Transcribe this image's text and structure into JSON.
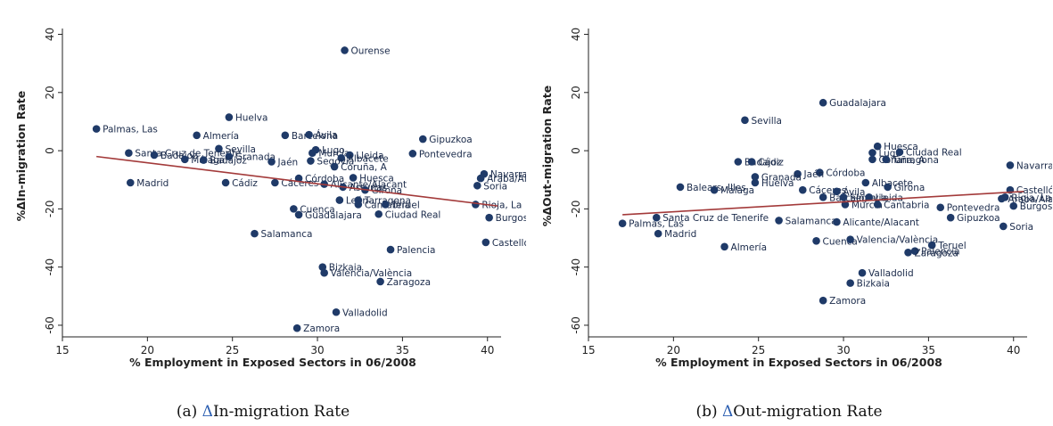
{
  "chart_data": [
    {
      "type": "scatter",
      "panel_caption_prefix": "(a)",
      "panel_caption_delta": "Δ",
      "panel_caption_text": "In-migration Rate",
      "xlabel": "% Employment in Exposed Sectors in 06/2008",
      "ylabel": "%ΔIn-migration Rate",
      "xlim": [
        15,
        40.8
      ],
      "ylim": [
        -64,
        42
      ],
      "xticks": [
        15,
        20,
        25,
        30,
        35,
        40
      ],
      "yticks": [
        40,
        20,
        0,
        -20,
        -40,
        -60
      ],
      "grid": false,
      "colors": {
        "points": "#1f3a68",
        "fit_line": "#a33a3a"
      },
      "fit_line": {
        "x": [
          17,
          40.6
        ],
        "y": [
          -2,
          -19
        ]
      },
      "points": [
        {
          "label": "Ourense",
          "x": 31.6,
          "y": 34.5
        },
        {
          "label": "Huelva",
          "x": 24.8,
          "y": 11.5
        },
        {
          "label": "Palmas, Las",
          "x": 17.0,
          "y": 7.5
        },
        {
          "label": "Almería",
          "x": 22.9,
          "y": 5.3
        },
        {
          "label": "Barcelona",
          "x": 28.1,
          "y": 5.3
        },
        {
          "label": "Ávila",
          "x": 29.5,
          "y": 5.5
        },
        {
          "label": "Gipuzkoa",
          "x": 36.2,
          "y": 4.0
        },
        {
          "label": "Sevilla",
          "x": 24.2,
          "y": 0.7
        },
        {
          "label": "Lugo",
          "x": 29.9,
          "y": 0.3
        },
        {
          "label": "Murcia",
          "x": 29.7,
          "y": -0.8
        },
        {
          "label": "Lleida",
          "x": 31.9,
          "y": -1.5
        },
        {
          "label": "Pontevedra",
          "x": 35.6,
          "y": -1.0
        },
        {
          "label": "Santa Cruz de Tenerife",
          "x": 18.9,
          "y": -0.8
        },
        {
          "label": "Badajoz",
          "x": 20.4,
          "y": -1.5
        },
        {
          "label": "Granada",
          "x": 24.8,
          "y": -2.0
        },
        {
          "label": "Málaga",
          "x": 22.2,
          "y": -3.0
        },
        {
          "label": "Badajoz",
          "x": 23.3,
          "y": -3.2
        },
        {
          "label": "Albacete",
          "x": 31.4,
          "y": -2.5
        },
        {
          "label": "Segovia",
          "x": 29.6,
          "y": -3.5
        },
        {
          "label": "Jaén",
          "x": 27.3,
          "y": -3.8
        },
        {
          "label": "Coruña, A",
          "x": 31.0,
          "y": -5.5
        },
        {
          "label": "Navarra",
          "x": 39.8,
          "y": -8.0
        },
        {
          "label": "Araba/Álava",
          "x": 39.6,
          "y": -9.5
        },
        {
          "label": "Huesca",
          "x": 32.1,
          "y": -9.3
        },
        {
          "label": "Córdoba",
          "x": 28.9,
          "y": -9.5
        },
        {
          "label": "Madrid",
          "x": 19.0,
          "y": -11.0
        },
        {
          "label": "Cádiz",
          "x": 24.6,
          "y": -11.0
        },
        {
          "label": "Cáceres",
          "x": 27.5,
          "y": -11.0
        },
        {
          "label": "Alicante/Alacant",
          "x": 30.4,
          "y": -11.5
        },
        {
          "label": "Asturias",
          "x": 31.5,
          "y": -12.5
        },
        {
          "label": "Girona",
          "x": 32.8,
          "y": -13.5
        },
        {
          "label": "Soria",
          "x": 39.4,
          "y": -12.0
        },
        {
          "label": "León",
          "x": 31.3,
          "y": -17.0
        },
        {
          "label": "Tarragona",
          "x": 32.4,
          "y": -17.0
        },
        {
          "label": "Cantabria",
          "x": 32.4,
          "y": -18.5
        },
        {
          "label": "Teruel",
          "x": 34.0,
          "y": -18.5
        },
        {
          "label": "Rioja, La",
          "x": 39.3,
          "y": -18.5
        },
        {
          "label": "Cuenca",
          "x": 28.6,
          "y": -20.0
        },
        {
          "label": "Guadalajara",
          "x": 28.9,
          "y": -22.0
        },
        {
          "label": "Ciudad Real",
          "x": 33.6,
          "y": -21.8
        },
        {
          "label": "Burgos",
          "x": 40.1,
          "y": -23.0
        },
        {
          "label": "Salamanca",
          "x": 26.3,
          "y": -28.5
        },
        {
          "label": "Castellón/Castelló",
          "x": 39.9,
          "y": -31.5
        },
        {
          "label": "Palencia",
          "x": 34.3,
          "y": -34.0
        },
        {
          "label": "Bizkaia",
          "x": 30.3,
          "y": -40.0
        },
        {
          "label": "Valencia/València",
          "x": 30.4,
          "y": -42.0
        },
        {
          "label": "Zaragoza",
          "x": 33.7,
          "y": -45.0
        },
        {
          "label": "Valladolid",
          "x": 31.1,
          "y": -55.5
        },
        {
          "label": "Zamora",
          "x": 28.8,
          "y": -61.0
        }
      ]
    },
    {
      "type": "scatter",
      "panel_caption_prefix": "(b)",
      "panel_caption_delta": "Δ",
      "panel_caption_text": "Out-migration Rate",
      "xlabel": "% Employment in Exposed Sectors in 06/2008",
      "ylabel": "%ΔOut-migration Rate",
      "xlim": [
        15,
        40.8
      ],
      "ylim": [
        -64,
        42
      ],
      "xticks": [
        15,
        20,
        25,
        30,
        35,
        40
      ],
      "yticks": [
        40,
        20,
        0,
        -20,
        -40,
        -60
      ],
      "grid": false,
      "colors": {
        "points": "#1f3a68",
        "fit_line": "#a33a3a"
      },
      "fit_line": {
        "x": [
          17,
          40.6
        ],
        "y": [
          -22,
          -14
        ]
      },
      "points": [
        {
          "label": "Guadalajara",
          "x": 28.8,
          "y": 16.5
        },
        {
          "label": "Sevilla",
          "x": 24.2,
          "y": 10.5
        },
        {
          "label": "Huesca",
          "x": 32.0,
          "y": 1.5
        },
        {
          "label": "Lugo",
          "x": 31.7,
          "y": -0.7
        },
        {
          "label": "Ciudad Real",
          "x": 33.3,
          "y": -0.5
        },
        {
          "label": "Coruña, A",
          "x": 31.7,
          "y": -3.0
        },
        {
          "label": "Tarragona",
          "x": 32.5,
          "y": -3.0
        },
        {
          "label": "Navarra",
          "x": 39.8,
          "y": -5.0
        },
        {
          "label": "Badajoz",
          "x": 23.8,
          "y": -3.8
        },
        {
          "label": "Cádiz",
          "x": 24.6,
          "y": -3.8
        },
        {
          "label": "Córdoba",
          "x": 28.6,
          "y": -7.5
        },
        {
          "label": "Jaén",
          "x": 27.3,
          "y": -8.0
        },
        {
          "label": "Granada",
          "x": 24.8,
          "y": -9.0
        },
        {
          "label": "Huelva",
          "x": 24.8,
          "y": -11.0
        },
        {
          "label": "Albacete",
          "x": 31.3,
          "y": -11.0
        },
        {
          "label": "Girona",
          "x": 32.6,
          "y": -12.5
        },
        {
          "label": "Balears, Illes",
          "x": 20.4,
          "y": -12.5
        },
        {
          "label": "Málaga",
          "x": 22.4,
          "y": -13.5
        },
        {
          "label": "Cáceres",
          "x": 27.6,
          "y": -13.5
        },
        {
          "label": "Ávila",
          "x": 29.6,
          "y": -14.0
        },
        {
          "label": "Barcelona",
          "x": 28.8,
          "y": -16.0
        },
        {
          "label": "Segovia",
          "x": 30.0,
          "y": -16.0
        },
        {
          "label": "Lleida",
          "x": 31.5,
          "y": -16.0
        },
        {
          "label": "Castellón/Castelló",
          "x": 39.8,
          "y": -13.5
        },
        {
          "label": "Araba/Álava",
          "x": 39.3,
          "y": -16.5
        },
        {
          "label": "Rioja, La",
          "x": 39.5,
          "y": -16.0
        },
        {
          "label": "Burgos",
          "x": 40.0,
          "y": -19.0
        },
        {
          "label": "Murcia",
          "x": 30.1,
          "y": -18.5
        },
        {
          "label": "Cantabria",
          "x": 32.0,
          "y": -18.5
        },
        {
          "label": "Pontevedra",
          "x": 35.7,
          "y": -19.5
        },
        {
          "label": "Gipuzkoa",
          "x": 36.3,
          "y": -23.0
        },
        {
          "label": "Soria",
          "x": 39.4,
          "y": -26.0
        },
        {
          "label": "Palmas, Las",
          "x": 17.0,
          "y": -25.0
        },
        {
          "label": "Santa Cruz de Tenerife",
          "x": 19.0,
          "y": -23.0
        },
        {
          "label": "Salamanca",
          "x": 26.2,
          "y": -24.0
        },
        {
          "label": "Alicante/Alacant",
          "x": 29.6,
          "y": -24.5
        },
        {
          "label": "Madrid",
          "x": 19.1,
          "y": -28.5
        },
        {
          "label": "Almería",
          "x": 23.0,
          "y": -33.0
        },
        {
          "label": "Cuenca",
          "x": 28.4,
          "y": -31.0
        },
        {
          "label": "Valencia/València",
          "x": 30.4,
          "y": -30.5
        },
        {
          "label": "Teruel",
          "x": 35.2,
          "y": -32.5
        },
        {
          "label": "Palencia",
          "x": 34.2,
          "y": -34.5
        },
        {
          "label": "Zaragoza",
          "x": 33.8,
          "y": -35.0
        },
        {
          "label": "Valladolid",
          "x": 31.1,
          "y": -42.0
        },
        {
          "label": "Bizkaia",
          "x": 30.4,
          "y": -45.5
        },
        {
          "label": "Zamora",
          "x": 28.8,
          "y": -51.5
        }
      ]
    }
  ]
}
